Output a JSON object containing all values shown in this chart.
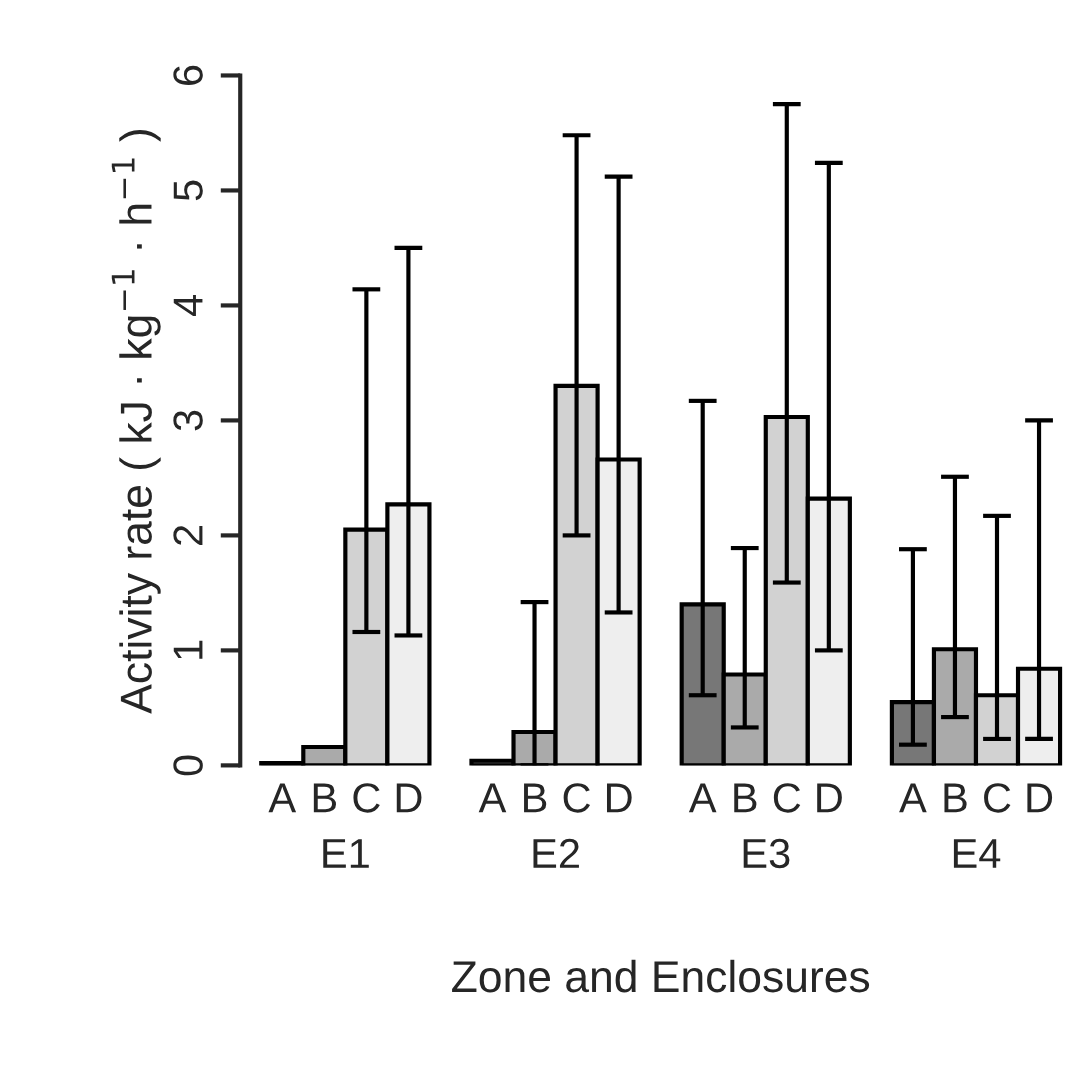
{
  "chart_data": {
    "type": "bar",
    "xlabel": "Zone and Enclosures",
    "ylabel": "Activity rate ( kJ · kg$^{−1}$ · h$^{−1}$ )",
    "categories": [
      "E1",
      "E2",
      "E3",
      "E4"
    ],
    "series": [
      {
        "name": "A",
        "color": "#777777",
        "values": [
          0.02,
          0.04,
          1.4,
          0.55
        ],
        "errors": [
          null,
          null,
          [
            0.61,
            3.17
          ],
          [
            0.18,
            1.88
          ]
        ]
      },
      {
        "name": "B",
        "color": "#aaaaaa",
        "values": [
          0.16,
          0.29,
          0.79,
          1.01
        ],
        "errors": [
          null,
          [
            0.0,
            1.42
          ],
          [
            0.33,
            1.89
          ],
          [
            0.42,
            2.51
          ]
        ]
      },
      {
        "name": "C",
        "color": "#d2d2d2",
        "values": [
          2.05,
          3.3,
          3.03,
          0.61
        ],
        "errors": [
          [
            1.16,
            4.14
          ],
          [
            2.0,
            5.48
          ],
          [
            1.59,
            5.75
          ],
          [
            0.23,
            2.17
          ]
        ]
      },
      {
        "name": "D",
        "color": "#eeeeee",
        "values": [
          2.27,
          2.66,
          2.32,
          0.84
        ],
        "errors": [
          [
            1.13,
            4.5
          ],
          [
            1.33,
            5.12
          ],
          [
            1.0,
            5.24
          ],
          [
            0.23,
            3.0
          ]
        ]
      }
    ],
    "ylim": [
      0,
      6
    ],
    "yticks": [
      0,
      1,
      2,
      3,
      4,
      5,
      6
    ],
    "grid": false,
    "legend": false
  }
}
